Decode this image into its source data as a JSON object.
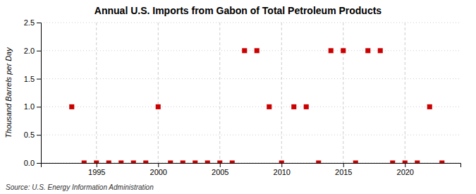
{
  "chart_data": {
    "type": "scatter",
    "title": "Annual U.S. Imports from Gabon of Total Petroleum Products",
    "ylabel": "Thousand Barrels per Day",
    "source": "Source: U.S. Energy Information Administration",
    "x": [
      1993,
      1994,
      1995,
      1996,
      1997,
      1998,
      1999,
      2000,
      2001,
      2002,
      2003,
      2004,
      2005,
      2006,
      2007,
      2008,
      2009,
      2010,
      2011,
      2012,
      2013,
      2014,
      2015,
      2016,
      2017,
      2018,
      2019,
      2020,
      2021,
      2022,
      2023
    ],
    "values": [
      1.0,
      0.0,
      0.0,
      0.0,
      0.0,
      0.0,
      0.0,
      1.0,
      0.0,
      0.0,
      0.0,
      0.0,
      0.0,
      0.0,
      2.0,
      2.0,
      1.0,
      0.0,
      1.0,
      1.0,
      0.0,
      2.0,
      2.0,
      0.0,
      2.0,
      2.0,
      0.0,
      0.0,
      0.0,
      1.0,
      0.0
    ],
    "color": "#cc0000",
    "marker": "square",
    "xlim": [
      1990.5,
      2024.5
    ],
    "xticks": [
      1995,
      2000,
      2005,
      2010,
      2015,
      2020
    ],
    "ylim": [
      0,
      2.5
    ],
    "yticks": [
      {
        "value": 0.0,
        "label": "0.0"
      },
      0.5,
      {
        "value": 1.0,
        "label": "1.0"
      },
      1.5,
      {
        "value": 2.0,
        "label": "2.0"
      },
      2.5
    ],
    "grid": true
  }
}
